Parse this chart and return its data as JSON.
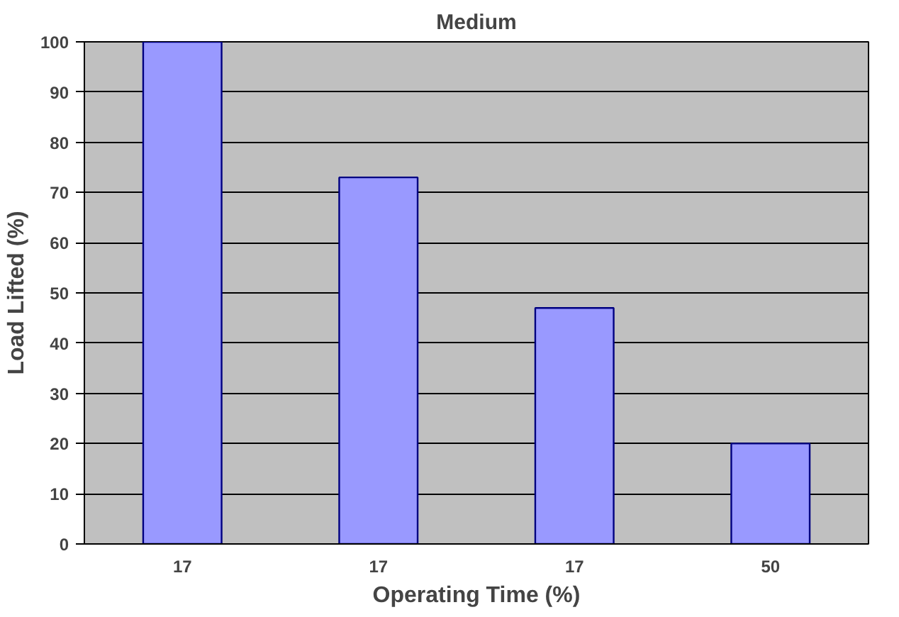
{
  "chart_data": {
    "type": "bar",
    "title": "Medium",
    "xlabel": "Operating Time (%)",
    "ylabel": "Load Lifted (%)",
    "categories": [
      "17",
      "17",
      "17",
      "50"
    ],
    "values": [
      100,
      73,
      47,
      20
    ],
    "color": "#9999ff",
    "ylim": [
      0,
      100
    ],
    "yticks": [
      0,
      10,
      20,
      30,
      40,
      50,
      60,
      70,
      80,
      90,
      100
    ],
    "grid": "y"
  }
}
